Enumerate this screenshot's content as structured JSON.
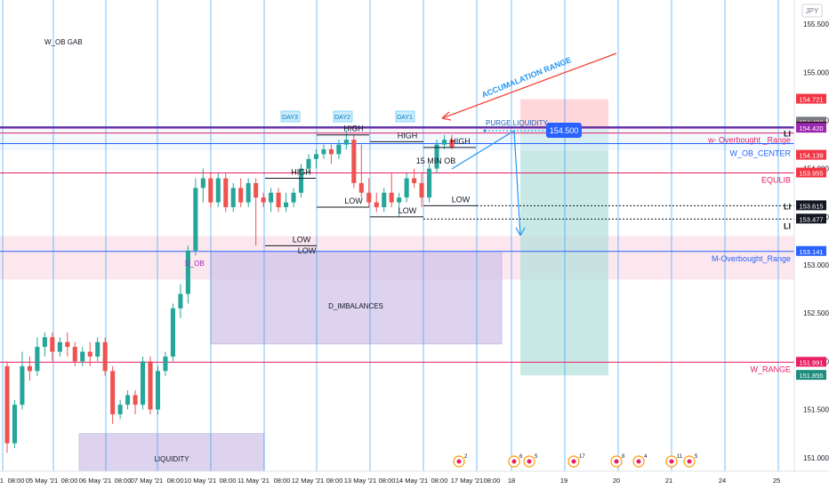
{
  "chart_data": {
    "type": "candlestick",
    "symbol": "",
    "currency": "JPY",
    "y_range": [
      150.86,
      155.75
    ],
    "y_ticks": [
      155.5,
      155.0,
      154.5,
      154.0,
      153.5,
      153.0,
      152.5,
      152.0,
      151.5,
      151.0
    ],
    "y_tick_labels": [
      "155.500",
      "155.000",
      "154.500",
      "154.000",
      "153.500",
      "153.000",
      "152.500",
      "152.000",
      "151.500",
      "151.000"
    ],
    "x_labels": [
      "1",
      "08:00",
      "05 May '21",
      "08:00",
      "06 May '21",
      "08:00",
      "07 May '21",
      "08:00",
      "10 May '21",
      "08:00",
      "11 May '21",
      "08:00",
      "12 May '21",
      "08:00",
      "13 May '21",
      "08:00",
      "14 May '21",
      "08:00",
      "17 May '21",
      "08:00",
      "18",
      "19",
      "20",
      "21",
      "24",
      "25"
    ],
    "candles": [
      {
        "o": 151.95,
        "h": 152.0,
        "l": 151.05,
        "c": 151.15
      },
      {
        "o": 151.15,
        "h": 151.6,
        "l": 151.1,
        "c": 151.55
      },
      {
        "o": 151.55,
        "h": 152.1,
        "l": 151.5,
        "c": 151.95
      },
      {
        "o": 151.95,
        "h": 152.05,
        "l": 151.8,
        "c": 151.9
      },
      {
        "o": 151.9,
        "h": 152.25,
        "l": 151.85,
        "c": 152.15
      },
      {
        "o": 152.15,
        "h": 152.3,
        "l": 152.05,
        "c": 152.25
      },
      {
        "o": 152.25,
        "h": 152.3,
        "l": 152.0,
        "c": 152.1
      },
      {
        "o": 152.1,
        "h": 152.25,
        "l": 152.05,
        "c": 152.2
      },
      {
        "o": 152.2,
        "h": 152.3,
        "l": 152.05,
        "c": 152.15
      },
      {
        "o": 152.15,
        "h": 152.2,
        "l": 151.95,
        "c": 152.0
      },
      {
        "o": 152.0,
        "h": 152.15,
        "l": 151.95,
        "c": 152.1
      },
      {
        "o": 152.1,
        "h": 152.2,
        "l": 151.95,
        "c": 152.05
      },
      {
        "o": 152.05,
        "h": 152.25,
        "l": 152.0,
        "c": 152.2
      },
      {
        "o": 152.2,
        "h": 152.25,
        "l": 151.85,
        "c": 151.9
      },
      {
        "o": 151.9,
        "h": 151.95,
        "l": 151.35,
        "c": 151.45
      },
      {
        "o": 151.45,
        "h": 151.6,
        "l": 151.4,
        "c": 151.55
      },
      {
        "o": 151.55,
        "h": 151.7,
        "l": 151.5,
        "c": 151.65
      },
      {
        "o": 151.65,
        "h": 151.7,
        "l": 151.45,
        "c": 151.55
      },
      {
        "o": 151.55,
        "h": 152.05,
        "l": 151.5,
        "c": 152.0
      },
      {
        "o": 152.0,
        "h": 152.05,
        "l": 151.45,
        "c": 151.5
      },
      {
        "o": 151.5,
        "h": 151.95,
        "l": 151.45,
        "c": 151.9
      },
      {
        "o": 151.9,
        "h": 152.1,
        "l": 151.85,
        "c": 152.05
      },
      {
        "o": 152.05,
        "h": 152.6,
        "l": 152.0,
        "c": 152.55
      },
      {
        "o": 152.55,
        "h": 152.8,
        "l": 152.45,
        "c": 152.7
      },
      {
        "o": 152.7,
        "h": 153.2,
        "l": 152.6,
        "c": 153.15
      },
      {
        "o": 153.15,
        "h": 153.9,
        "l": 153.1,
        "c": 153.8
      },
      {
        "o": 153.8,
        "h": 154.0,
        "l": 153.65,
        "c": 153.9
      },
      {
        "o": 153.9,
        "h": 153.95,
        "l": 153.6,
        "c": 153.65
      },
      {
        "o": 153.65,
        "h": 153.95,
        "l": 153.6,
        "c": 153.9
      },
      {
        "o": 153.9,
        "h": 153.95,
        "l": 153.55,
        "c": 153.6
      },
      {
        "o": 153.6,
        "h": 153.85,
        "l": 153.55,
        "c": 153.8
      },
      {
        "o": 153.8,
        "h": 153.9,
        "l": 153.6,
        "c": 153.65
      },
      {
        "o": 153.65,
        "h": 153.9,
        "l": 153.6,
        "c": 153.85
      },
      {
        "o": 153.85,
        "h": 153.9,
        "l": 153.2,
        "c": 153.7
      },
      {
        "o": 153.7,
        "h": 153.75,
        "l": 153.6,
        "c": 153.65
      },
      {
        "o": 153.65,
        "h": 153.8,
        "l": 153.55,
        "c": 153.75
      },
      {
        "o": 153.75,
        "h": 153.8,
        "l": 153.55,
        "c": 153.6
      },
      {
        "o": 153.6,
        "h": 153.75,
        "l": 153.55,
        "c": 153.65
      },
      {
        "o": 153.65,
        "h": 153.8,
        "l": 153.6,
        "c": 153.75
      },
      {
        "o": 153.75,
        "h": 154.05,
        "l": 153.7,
        "c": 154.0
      },
      {
        "o": 154.0,
        "h": 154.15,
        "l": 153.95,
        "c": 154.1
      },
      {
        "o": 154.1,
        "h": 154.2,
        "l": 154.0,
        "c": 154.15
      },
      {
        "o": 154.15,
        "h": 154.25,
        "l": 154.1,
        "c": 154.2
      },
      {
        "o": 154.2,
        "h": 154.25,
        "l": 154.05,
        "c": 154.15
      },
      {
        "o": 154.15,
        "h": 154.3,
        "l": 154.1,
        "c": 154.25
      },
      {
        "o": 154.25,
        "h": 154.4,
        "l": 154.2,
        "c": 154.3
      },
      {
        "o": 154.3,
        "h": 154.35,
        "l": 153.8,
        "c": 153.85
      },
      {
        "o": 153.85,
        "h": 154.25,
        "l": 153.7,
        "c": 153.75
      },
      {
        "o": 153.75,
        "h": 153.9,
        "l": 153.6,
        "c": 153.65
      },
      {
        "o": 153.65,
        "h": 153.75,
        "l": 153.55,
        "c": 153.6
      },
      {
        "o": 153.6,
        "h": 153.8,
        "l": 153.55,
        "c": 153.75
      },
      {
        "o": 153.75,
        "h": 153.95,
        "l": 153.6,
        "c": 153.65
      },
      {
        "o": 153.65,
        "h": 153.75,
        "l": 153.5,
        "c": 153.7
      },
      {
        "o": 153.7,
        "h": 153.95,
        "l": 153.65,
        "c": 153.9
      },
      {
        "o": 153.9,
        "h": 154.0,
        "l": 153.8,
        "c": 153.85
      },
      {
        "o": 153.85,
        "h": 153.95,
        "l": 153.6,
        "c": 153.7
      },
      {
        "o": 153.7,
        "h": 154.05,
        "l": 153.65,
        "c": 154.0
      },
      {
        "o": 154.0,
        "h": 154.3,
        "l": 153.95,
        "c": 154.25
      },
      {
        "o": 154.25,
        "h": 154.35,
        "l": 154.2,
        "c": 154.3
      },
      {
        "o": 154.3,
        "h": 154.35,
        "l": 154.2,
        "c": 154.22
      }
    ],
    "price_labels": [
      {
        "value": 154.721,
        "text": "154.721",
        "color": "#f23645"
      },
      {
        "value": 154.483,
        "text": "154.483",
        "color": "#787b86"
      },
      {
        "value": 154.434,
        "text": "154.434",
        "color": "#f23645"
      },
      {
        "value": 154.431,
        "text": "154.431",
        "color": "#131722"
      },
      {
        "value": 154.42,
        "text": "154.420",
        "color": "#9c27b0"
      },
      {
        "value": 154.139,
        "text": "154.139",
        "color": "#f23645"
      },
      {
        "value": 153.955,
        "text": "153.955",
        "color": "#f23645"
      },
      {
        "value": 153.615,
        "text": "153.615",
        "color": "#131722"
      },
      {
        "value": 153.477,
        "text": "153.477",
        "color": "#131722"
      },
      {
        "value": 153.141,
        "text": "153.141",
        "color": "#2962ff"
      },
      {
        "value": 151.991,
        "text": "151.991",
        "color": "#e91e63"
      },
      {
        "value": 151.855,
        "text": "151.855",
        "color": "#1e8c7e"
      }
    ],
    "levels": [
      {
        "name": "w- Overbought _Range",
        "value": 154.37,
        "color": "#e91e63",
        "label": "w- Overbought _Range"
      },
      {
        "name": "W_OB_CENTER",
        "value": 154.26,
        "color": "#2962ff",
        "label": "W_OB_CENTER"
      },
      {
        "name": "EQULIB",
        "value": 153.955,
        "color": "#e91e63",
        "label": "EQULIB"
      },
      {
        "name": "M-Overbought_Range",
        "value": 153.141,
        "color": "#2962ff",
        "label": "M-Overbought_Range"
      },
      {
        "name": "W_RANGE",
        "value": 151.991,
        "color": "#e91e63",
        "label": "W_RANGE"
      }
    ],
    "zones": [
      {
        "label": "D_IMBALANCES",
        "text": "D_IMBALANCES"
      },
      {
        "label": "LIQUIDITY",
        "text": "LIQUIDITY"
      },
      {
        "label": "D_OB",
        "text": "D_OB"
      }
    ],
    "annotations": {
      "high": "HIGH",
      "low": "LOW",
      "day1": "DAY1",
      "day2": "DAY2",
      "day3": "DAY3",
      "w_ob_gab": "W_OB GAB",
      "accumulation": "ACCUMALATION RANGE",
      "purge": "PURGE LIQUIDITY",
      "fifteen_min": "15 MIN OB",
      "li": "LI",
      "target_price": "154.500"
    },
    "event_counts": [
      "2",
      "6",
      "5",
      "17",
      "8",
      "4",
      "11",
      "5"
    ]
  },
  "colors": {
    "up": "#26a69a",
    "down": "#ef5350",
    "purple_zone": "#d1c4e9",
    "pink_zone": "#fce4ec",
    "teal_zone": "#b2dfdb",
    "red_zone": "#ffcdd2",
    "vline": "#2196f3",
    "arrow_red": "#f44336",
    "arrow_blue": "#2196f3"
  }
}
